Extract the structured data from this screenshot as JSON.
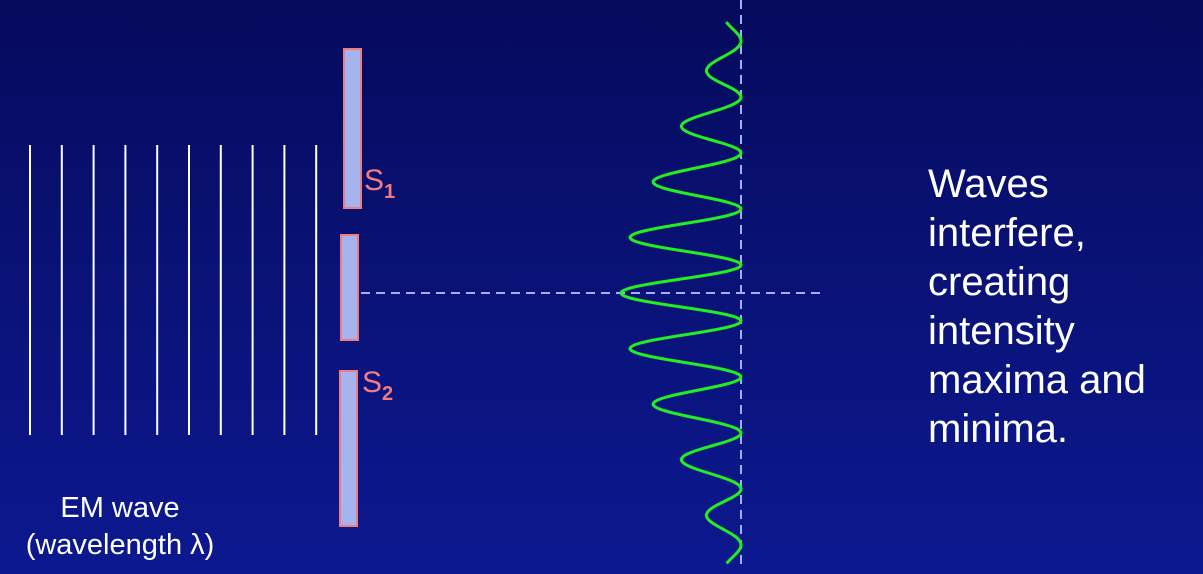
{
  "slits": {
    "s1": {
      "letter": "S",
      "sub": "1"
    },
    "s2": {
      "letter": "S",
      "sub": "2"
    }
  },
  "wave_label": {
    "line1": "EM wave",
    "line2": "(wavelength λ)"
  },
  "caption": {
    "lines": [
      "Waves",
      "interfere,",
      "creating",
      "intensity",
      "maxima and",
      "minima."
    ]
  },
  "colors": {
    "background": "#07107a",
    "wavefront": "#ffffff",
    "barrier_fill": "#a5b3ef",
    "barrier_edge": "#f07c80",
    "dashed_line": "#9fb0ff",
    "intensity_curve": "#22ee22"
  }
}
